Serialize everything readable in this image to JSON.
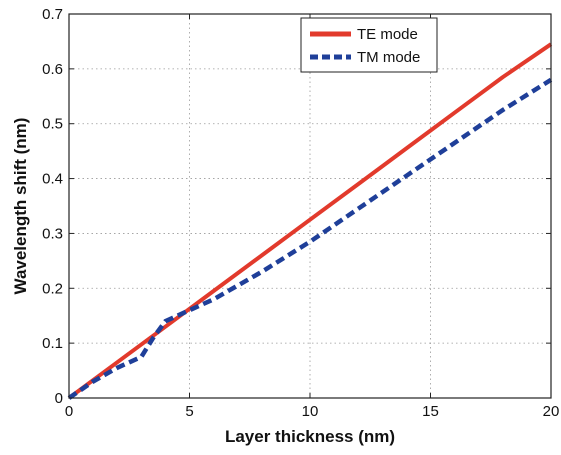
{
  "chart_data": {
    "type": "line",
    "title": "",
    "xlabel": "Layer thickness (nm)",
    "ylabel": "Wavelength shift (nm)",
    "xlim": [
      0,
      20
    ],
    "ylim": [
      0,
      0.7
    ],
    "xticks": [
      0,
      5,
      10,
      15,
      20
    ],
    "yticks": [
      0,
      0.1,
      0.2,
      0.3,
      0.4,
      0.5,
      0.6,
      0.7
    ],
    "xtick_labels": [
      "0",
      "5",
      "10",
      "15",
      "20"
    ],
    "ytick_labels": [
      "0",
      "0.1",
      "0.2",
      "0.3",
      "0.4",
      "0.5",
      "0.6",
      "0.7"
    ],
    "grid": true,
    "legend_position": "top-right",
    "series": [
      {
        "name": "TE mode",
        "color": "#e23a2c",
        "style": "solid",
        "x": [
          0,
          2,
          4,
          6,
          8,
          10,
          12,
          14,
          16,
          18,
          20
        ],
        "y": [
          0,
          0.065,
          0.13,
          0.195,
          0.26,
          0.325,
          0.39,
          0.455,
          0.52,
          0.585,
          0.645
        ]
      },
      {
        "name": "TM mode",
        "color": "#1f3f99",
        "style": "dashed",
        "x": [
          0,
          1,
          2,
          3,
          3.5,
          4,
          5,
          6,
          8,
          10,
          12,
          14,
          16,
          18,
          20
        ],
        "y": [
          0,
          0.03,
          0.055,
          0.075,
          0.11,
          0.14,
          0.16,
          0.18,
          0.23,
          0.285,
          0.345,
          0.405,
          0.465,
          0.525,
          0.58
        ]
      }
    ]
  }
}
